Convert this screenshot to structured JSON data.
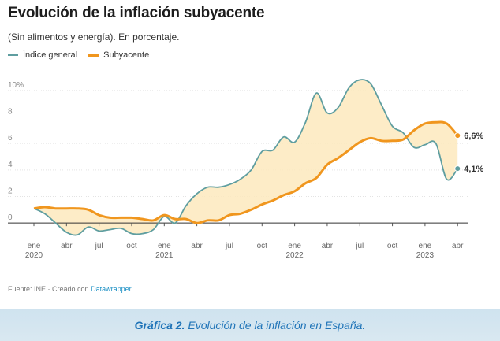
{
  "caption": {
    "label": "Gráfica 2.",
    "text": "Evolución de la inflación en España."
  },
  "source": {
    "prefix": "Fuente: INE · Creado con",
    "brand": "Datawrapper"
  },
  "chart_data": {
    "type": "line",
    "title": "Evolución de la inflación subyacente",
    "subtitle": "(Sin alimentos y energía). En porcentaje.",
    "xlabel": "",
    "ylabel": "",
    "ylim": [
      -1,
      11
    ],
    "yticks": [
      0,
      2,
      4,
      6,
      8,
      10
    ],
    "ytick_labels": [
      "0",
      "2",
      "4",
      "6",
      "8",
      "10%"
    ],
    "grid": true,
    "legend": "top-left",
    "xticks": [
      {
        "month": 0,
        "label": "ene",
        "year": "2020"
      },
      {
        "month": 3,
        "label": "abr",
        "year": ""
      },
      {
        "month": 6,
        "label": "jul",
        "year": ""
      },
      {
        "month": 9,
        "label": "oct",
        "year": ""
      },
      {
        "month": 12,
        "label": "ene",
        "year": "2021"
      },
      {
        "month": 15,
        "label": "abr",
        "year": ""
      },
      {
        "month": 18,
        "label": "jul",
        "year": ""
      },
      {
        "month": 21,
        "label": "oct",
        "year": ""
      },
      {
        "month": 24,
        "label": "ene",
        "year": "2022"
      },
      {
        "month": 27,
        "label": "abr",
        "year": ""
      },
      {
        "month": 30,
        "label": "jul",
        "year": ""
      },
      {
        "month": 33,
        "label": "oct",
        "year": ""
      },
      {
        "month": 36,
        "label": "ene",
        "year": "2023"
      },
      {
        "month": 39,
        "label": "abr",
        "year": ""
      }
    ],
    "xlim": [
      0,
      40
    ],
    "series": [
      {
        "name": "Índice general",
        "color": "#5f9ea0",
        "end_label": "4,1%",
        "x": [
          0,
          1,
          2,
          3,
          4,
          5,
          6,
          7,
          8,
          9,
          10,
          11,
          12,
          13,
          14,
          15,
          16,
          17,
          18,
          19,
          20,
          21,
          22,
          23,
          24,
          25,
          26,
          27,
          28,
          29,
          30,
          31,
          32,
          33,
          34,
          35,
          36,
          37,
          38,
          39
        ],
        "values": [
          1.1,
          0.7,
          0.0,
          -0.7,
          -0.9,
          -0.3,
          -0.6,
          -0.5,
          -0.4,
          -0.8,
          -0.8,
          -0.5,
          0.5,
          0.0,
          1.3,
          2.2,
          2.7,
          2.7,
          2.9,
          3.3,
          4.0,
          5.4,
          5.5,
          6.5,
          6.1,
          7.6,
          9.8,
          8.3,
          8.7,
          10.2,
          10.8,
          10.5,
          8.9,
          7.3,
          6.8,
          5.7,
          5.9,
          6.0,
          3.3,
          4.1
        ]
      },
      {
        "name": "Subyacente",
        "color": "#f0961e",
        "end_label": "6,6%",
        "x": [
          0,
          1,
          2,
          3,
          4,
          5,
          6,
          7,
          8,
          9,
          10,
          11,
          12,
          13,
          14,
          15,
          16,
          17,
          18,
          19,
          20,
          21,
          22,
          23,
          24,
          25,
          26,
          27,
          28,
          29,
          30,
          31,
          32,
          33,
          34,
          35,
          36,
          37,
          38,
          39
        ],
        "values": [
          1.1,
          1.2,
          1.1,
          1.1,
          1.1,
          1.0,
          0.6,
          0.4,
          0.4,
          0.4,
          0.3,
          0.2,
          0.6,
          0.3,
          0.3,
          0.0,
          0.2,
          0.2,
          0.6,
          0.7,
          1.0,
          1.4,
          1.7,
          2.1,
          2.4,
          3.0,
          3.4,
          4.4,
          4.9,
          5.5,
          6.1,
          6.4,
          6.2,
          6.2,
          6.3,
          7.0,
          7.5,
          7.6,
          7.5,
          6.6
        ]
      }
    ]
  }
}
